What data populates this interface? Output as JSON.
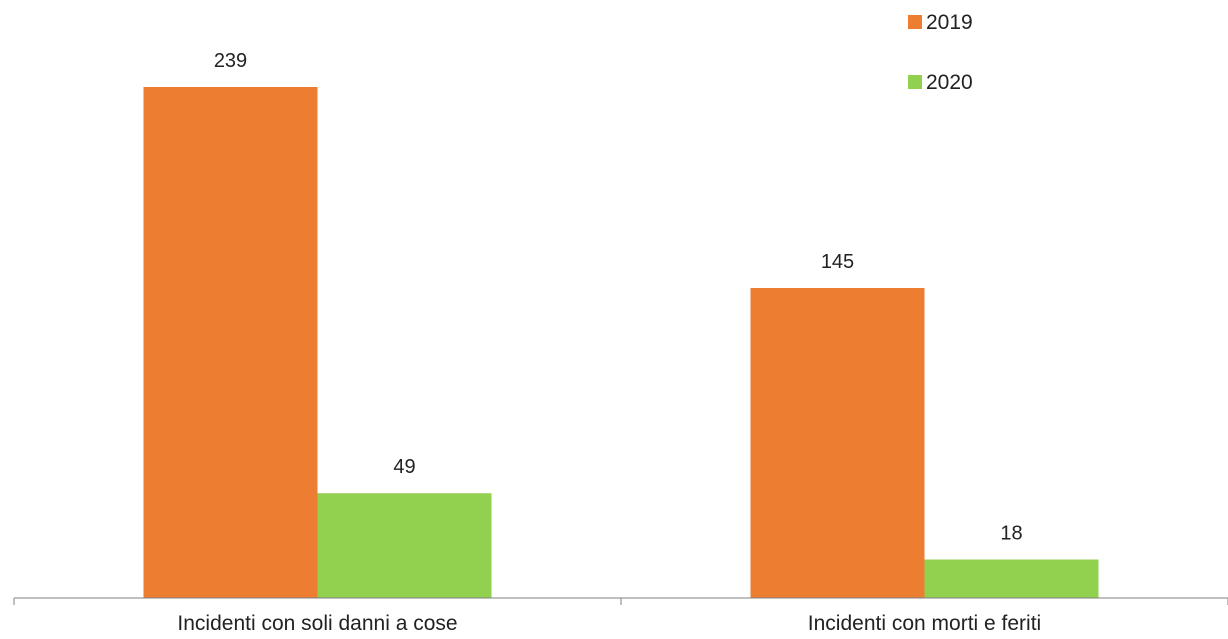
{
  "chart_data": {
    "type": "bar",
    "categories": [
      "Incidenti con soli danni a cose",
      "Incidenti con morti e feriti"
    ],
    "series": [
      {
        "name": "2019",
        "values": [
          239,
          145
        ],
        "color": "#ED7D31"
      },
      {
        "name": "2020",
        "values": [
          49,
          18
        ],
        "color": "#92D050"
      }
    ],
    "ylim": [
      0,
      239
    ],
    "grid": false,
    "legend_position": "top-right"
  }
}
